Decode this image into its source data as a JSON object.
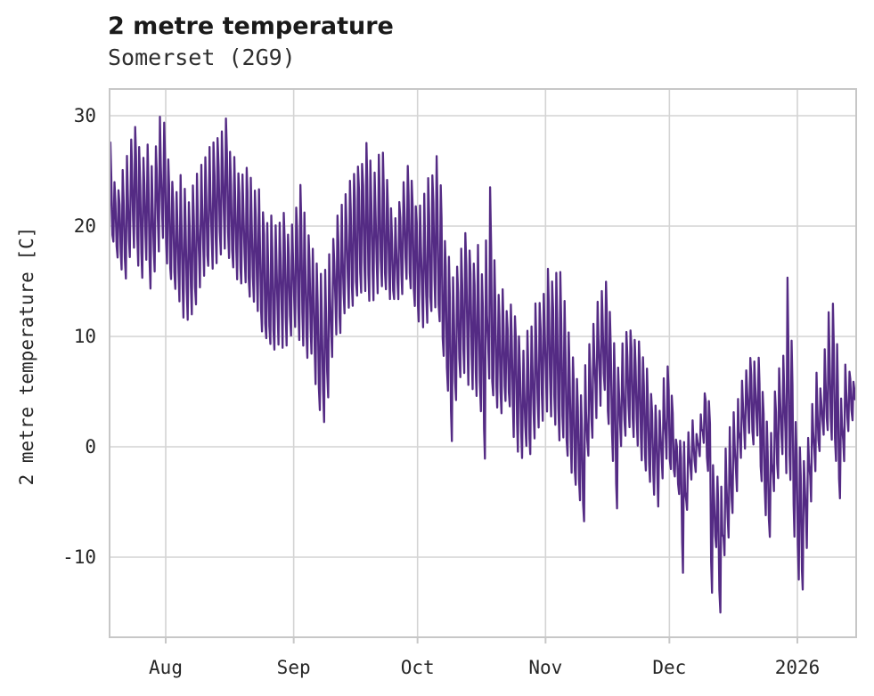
{
  "chart_data": {
    "type": "line",
    "title": "2 metre temperature",
    "subtitle": "Somerset (2G9)",
    "ylabel": "2 metre temperature [C]",
    "x_tick_labels": [
      "Aug",
      "Sep",
      "Oct",
      "Nov",
      "Dec",
      "2026"
    ],
    "month_ticks_day": [
      0,
      31,
      61,
      92,
      122,
      153
    ],
    "y_ticks": [
      30,
      20,
      10,
      0,
      -10
    ],
    "ylim": [
      -17.3,
      32.4
    ],
    "x_start_day": -14,
    "grid": true,
    "legend": "none",
    "line_color": "#542b84",
    "grid_color": "#d4d4d4",
    "spine_color": "#c7c7c7",
    "noise_seed": 11,
    "noise_amp": 0.8,
    "series": {
      "name": "2 metre temperature [C]",
      "daily_max": [
        27.3,
        24,
        23.5,
        25,
        26.5,
        28,
        28.7,
        27.5,
        26,
        27,
        25.5,
        27.5,
        30,
        29.3,
        26.2,
        24,
        23,
        24.5,
        23,
        22.5,
        23.5,
        24.5,
        25.5,
        26.5,
        27,
        27.5,
        28,
        28.5,
        29.6,
        27,
        26,
        25,
        24.5,
        25.5,
        24,
        23,
        23,
        21.5,
        20.5,
        21,
        20,
        20.5,
        21.5,
        19.5,
        20,
        22,
        23.4,
        21,
        19,
        18,
        17,
        15.5,
        16,
        17.5,
        19,
        21,
        22,
        23,
        24,
        25,
        25.5,
        26,
        27.2,
        26,
        25,
        26.5,
        27,
        24,
        22,
        21,
        22.5,
        24,
        25.7,
        24,
        22,
        22,
        23,
        24,
        25,
        26.2,
        24,
        19,
        17.5,
        15,
        16.5,
        18,
        19.5,
        18,
        17,
        18,
        16,
        19,
        23.5,
        17,
        14,
        13.9,
        12.5,
        13,
        12,
        10,
        9,
        10.5,
        11,
        12.8,
        13,
        14,
        16.5,
        15,
        16.1,
        15.5,
        13,
        10,
        8,
        6,
        5,
        7,
        9,
        11,
        13,
        14,
        15.1,
        12,
        9,
        7,
        9,
        10.1,
        10.8,
        10,
        9.5,
        8,
        7,
        5,
        4,
        3.5,
        6,
        7,
        5,
        1,
        0.6,
        0.5,
        1.3,
        2,
        1,
        3,
        5.2,
        4,
        -2,
        -3,
        -4,
        0,
        2,
        3,
        4,
        6,
        7,
        8.1,
        7.5,
        8,
        5,
        2,
        1,
        5,
        7,
        8.1,
        15.3,
        10,
        2,
        0,
        -1.2,
        1,
        4,
        6.4,
        5,
        9.1,
        11.9,
        13.2,
        9,
        4,
        7.7,
        7.2,
        5.8
      ],
      "daily_min": [
        17.5,
        18.5,
        17,
        16,
        15,
        17,
        18,
        16.5,
        15.5,
        17,
        14.7,
        16,
        18,
        19,
        17,
        15,
        14,
        13.5,
        12,
        11.3,
        11.9,
        13,
        14.5,
        15.5,
        16,
        16.5,
        17,
        17.5,
        18,
        17.5,
        16.5,
        15.5,
        14.5,
        15,
        14,
        13.5,
        12,
        10.5,
        9.8,
        9.5,
        9.1,
        9.2,
        9,
        9.5,
        10,
        11,
        10,
        9,
        8.2,
        8.5,
        6,
        3.5,
        2.2,
        4.8,
        8,
        10.5,
        10.4,
        12,
        12.5,
        13,
        13.5,
        14,
        14.5,
        13.5,
        13,
        14,
        14.7,
        14.5,
        13.5,
        13.1,
        13.5,
        14,
        15,
        14.5,
        13,
        11.5,
        11,
        11.5,
        12,
        12.5,
        11,
        8,
        5,
        0.2,
        4,
        6,
        6.5,
        6,
        5.5,
        5,
        3,
        -1,
        6,
        4.5,
        3.5,
        3.2,
        4,
        3.9,
        1,
        -0.5,
        -1,
        0,
        -0.6,
        0.5,
        2,
        2.6,
        3.5,
        3,
        2,
        0.7,
        1,
        -1,
        -2,
        -3.3,
        -5,
        -7.1,
        -1,
        1,
        3,
        4,
        5,
        2,
        -1,
        -5.3,
        0,
        1,
        1.5,
        0.5,
        0,
        -1,
        -2,
        -3.3,
        -4,
        -5.1,
        -3,
        -1,
        -2,
        -3,
        -4,
        -11.8,
        -6,
        -3,
        -2,
        -1,
        0,
        -2,
        -13.5,
        -9,
        -15.3,
        -10,
        -8,
        -6,
        -4,
        -1,
        0,
        1,
        0.5,
        1,
        -3,
        -6,
        -8,
        -4,
        -2.8,
        -1,
        -2,
        -3,
        -8,
        -11.7,
        -12.7,
        -9,
        -5,
        -2,
        0,
        1,
        1.2,
        0.4,
        -1,
        -4.9,
        -1,
        1.8,
        2.8
      ]
    }
  }
}
